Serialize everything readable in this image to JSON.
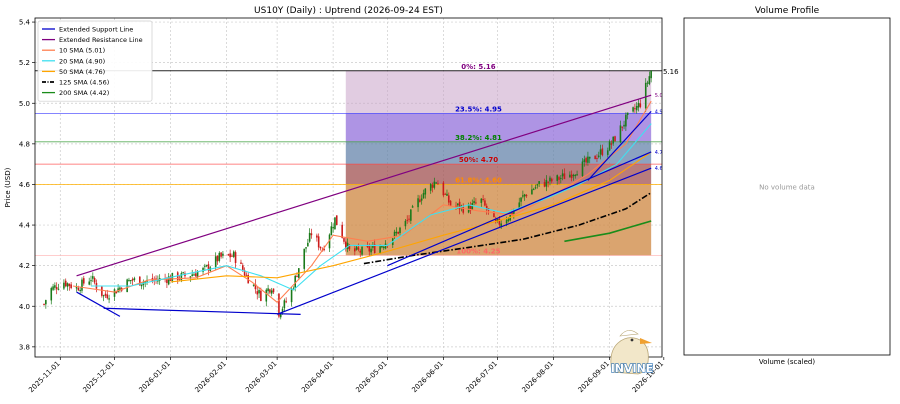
{
  "chart_data": [
    {
      "type": "candlestick",
      "title": "US10Y (Daily) : Uptrend (2026-09-24 EST)",
      "ylabel": "Price (USD)",
      "ylim": [
        3.75,
        5.42
      ],
      "yticks": [
        3.8,
        4.0,
        4.2,
        4.4,
        4.6,
        4.8,
        5.0,
        5.2,
        5.4
      ],
      "ytick_labels": [
        "3.8",
        "4.0",
        "4.2",
        "4.4",
        "4.6",
        "4.8",
        "5.0",
        "5.2",
        "5.4"
      ],
      "xrange": [
        "2025-10-18",
        "2026-09-30"
      ],
      "xticks": [
        "2025-11-01",
        "2025-12-01",
        "2026-01-01",
        "2026-02-01",
        "2026-03-01",
        "2026-04-01",
        "2026-05-01",
        "2026-06-01",
        "2026-07-01",
        "2026-08-01",
        "2026-09-01",
        "2026-10-01"
      ],
      "xtick_labels": [
        "2025-11-01",
        "2025-12-01",
        "2026-01-01",
        "2026-02-01",
        "2026-03-01",
        "2026-04-01",
        "2026-05-01",
        "2026-06-01",
        "2026-07-01",
        "2026-08-01",
        "2026-09-01",
        "2026-10-01"
      ],
      "grid": true,
      "legend_position": "top-left",
      "legend": [
        {
          "label": "Extended Support Line",
          "color": "#0000cc",
          "style": "solid"
        },
        {
          "label": "Extended Resistance Line",
          "color": "#800080",
          "style": "solid"
        },
        {
          "label": "10 SMA (5.01)",
          "color": "#ff7f50",
          "style": "solid"
        },
        {
          "label": "20 SMA (4.90)",
          "color": "#40e0f0",
          "style": "solid"
        },
        {
          "label": "50 SMA (4.76)",
          "color": "#ffa500",
          "style": "solid"
        },
        {
          "label": "125 SMA (4.56)",
          "color": "#000000",
          "style": "dashdot"
        },
        {
          "label": "200 SMA (4.42)",
          "color": "#1a8c1a",
          "style": "solid"
        }
      ],
      "current_price": {
        "value": 5.16,
        "label": "5.16"
      },
      "fibonacci": {
        "start_date": "2026-04-08",
        "end_date": "2026-09-24",
        "levels": [
          {
            "label": "0%: 5.16",
            "value": 5.16,
            "fill": "#c8a2c8",
            "color": "#800080"
          },
          {
            "label": "23.5%: 4.95",
            "value": 4.95,
            "fill": "#9370db",
            "color": "#0000cc"
          },
          {
            "label": "38.2%: 4.81",
            "value": 4.81,
            "fill": "#5f7fa8",
            "color": "#008000"
          },
          {
            "label": "50%: 4.70",
            "value": 4.7,
            "fill": "#a05050",
            "color": "#cc0000"
          },
          {
            "label": "61.8%: 4.60",
            "value": 4.6,
            "fill": "#cd853f",
            "color": "#ff8c00"
          },
          {
            "label": "100%: 4.25",
            "value": 4.25,
            "fill": "#cd853f",
            "color": "#ff6666"
          }
        ]
      },
      "horizontal_lines": [
        {
          "value": 5.16,
          "color": "#000000"
        },
        {
          "value": 4.95,
          "color": "#4040ff"
        },
        {
          "value": 4.81,
          "color": "#40a040"
        },
        {
          "value": 4.7,
          "color": "#ff4040"
        },
        {
          "value": 4.6,
          "color": "#ffb000"
        },
        {
          "value": 4.25,
          "color": "#ffb0b0"
        }
      ],
      "right_value_labels": [
        {
          "text": "5.04",
          "value": 5.04,
          "color": "#800080"
        },
        {
          "text": "4.96",
          "value": 4.96,
          "color": "#0000cc"
        },
        {
          "text": "4.76",
          "value": 4.76,
          "color": "#0000cc"
        },
        {
          "text": "4.68",
          "value": 4.68,
          "color": "#0000cc"
        }
      ],
      "trend_lines": [
        {
          "name": "support-lower-left",
          "color": "#0000cc",
          "points": [
            [
              "2025-11-10",
              4.07
            ],
            [
              "2025-12-04",
              3.95
            ]
          ]
        },
        {
          "name": "support-bottom",
          "color": "#0000cc",
          "points": [
            [
              "2025-11-25",
              3.99
            ],
            [
              "2026-03-14",
              3.96
            ]
          ]
        },
        {
          "name": "support-main",
          "color": "#0000cc",
          "points": [
            [
              "2026-03-01",
              3.96
            ],
            [
              "2026-09-24",
              4.68
            ]
          ]
        },
        {
          "name": "support-upper",
          "color": "#0000cc",
          "points": [
            [
              "2026-05-01",
              4.2
            ],
            [
              "2026-09-24",
              4.76
            ]
          ]
        },
        {
          "name": "support-steep",
          "color": "#0000cc",
          "points": [
            [
              "2026-08-20",
              4.62
            ],
            [
              "2026-09-24",
              4.96
            ]
          ]
        },
        {
          "name": "resistance",
          "color": "#800080",
          "points": [
            [
              "2025-11-10",
              4.15
            ],
            [
              "2026-09-24",
              5.04
            ]
          ]
        }
      ],
      "sma": [
        {
          "name": "10 SMA",
          "color": "#ff7f50",
          "points": [
            [
              "2025-11-08",
              4.1
            ],
            [
              "2025-12-01",
              4.07
            ],
            [
              "2025-12-20",
              4.13
            ],
            [
              "2026-01-15",
              4.14
            ],
            [
              "2026-02-01",
              4.2
            ],
            [
              "2026-02-15",
              4.12
            ],
            [
              "2026-03-01",
              4.02
            ],
            [
              "2026-03-20",
              4.2
            ],
            [
              "2026-04-01",
              4.35
            ],
            [
              "2026-04-20",
              4.32
            ],
            [
              "2026-05-10",
              4.35
            ],
            [
              "2026-06-01",
              4.5
            ],
            [
              "2026-06-20",
              4.47
            ],
            [
              "2026-07-10",
              4.45
            ],
            [
              "2026-08-01",
              4.55
            ],
            [
              "2026-08-20",
              4.65
            ],
            [
              "2026-09-10",
              4.8
            ],
            [
              "2026-09-24",
              5.01
            ]
          ]
        },
        {
          "name": "20 SMA",
          "color": "#40e0f0",
          "points": [
            [
              "2025-11-18",
              4.1
            ],
            [
              "2025-12-10",
              4.1
            ],
            [
              "2026-01-05",
              4.15
            ],
            [
              "2026-02-01",
              4.2
            ],
            [
              "2026-02-20",
              4.15
            ],
            [
              "2026-03-10",
              4.08
            ],
            [
              "2026-03-25",
              4.2
            ],
            [
              "2026-04-10",
              4.3
            ],
            [
              "2026-05-01",
              4.3
            ],
            [
              "2026-05-25",
              4.45
            ],
            [
              "2026-06-15",
              4.5
            ],
            [
              "2026-07-05",
              4.46
            ],
            [
              "2026-07-25",
              4.52
            ],
            [
              "2026-08-15",
              4.6
            ],
            [
              "2026-09-05",
              4.7
            ],
            [
              "2026-09-24",
              4.9
            ]
          ]
        },
        {
          "name": "50 SMA",
          "color": "#ffa500",
          "points": [
            [
              "2026-01-01",
              4.12
            ],
            [
              "2026-02-01",
              4.15
            ],
            [
              "2026-03-01",
              4.14
            ],
            [
              "2026-04-01",
              4.2
            ],
            [
              "2026-05-01",
              4.27
            ],
            [
              "2026-06-01",
              4.35
            ],
            [
              "2026-07-01",
              4.42
            ],
            [
              "2026-08-01",
              4.5
            ],
            [
              "2026-09-01",
              4.62
            ],
            [
              "2026-09-24",
              4.76
            ]
          ]
        },
        {
          "name": "125 SMA",
          "color": "#000000",
          "points": [
            [
              "2026-04-18",
              4.21
            ],
            [
              "2026-05-15",
              4.25
            ],
            [
              "2026-06-15",
              4.29
            ],
            [
              "2026-07-15",
              4.33
            ],
            [
              "2026-08-15",
              4.4
            ],
            [
              "2026-09-10",
              4.48
            ],
            [
              "2026-09-24",
              4.56
            ]
          ]
        },
        {
          "name": "200 SMA",
          "color": "#1a8c1a",
          "points": [
            [
              "2026-08-07",
              4.32
            ],
            [
              "2026-09-01",
              4.36
            ],
            [
              "2026-09-24",
              4.42
            ]
          ]
        }
      ],
      "close_path": [
        [
          "2025-10-23",
          4.01
        ],
        [
          "2025-10-26",
          4.08
        ],
        [
          "2025-11-03",
          4.12
        ],
        [
          "2025-11-10",
          4.09
        ],
        [
          "2025-11-18",
          4.14
        ],
        [
          "2025-11-25",
          4.05
        ],
        [
          "2025-12-02",
          4.08
        ],
        [
          "2025-12-10",
          4.13
        ],
        [
          "2025-12-18",
          4.12
        ],
        [
          "2026-01-01",
          4.14
        ],
        [
          "2026-01-10",
          4.15
        ],
        [
          "2026-01-20",
          4.18
        ],
        [
          "2026-01-28",
          4.24
        ],
        [
          "2026-02-05",
          4.25
        ],
        [
          "2026-02-12",
          4.15
        ],
        [
          "2026-02-20",
          4.05
        ],
        [
          "2026-02-26",
          4.1
        ],
        [
          "2026-03-02",
          3.97
        ],
        [
          "2026-03-08",
          4.05
        ],
        [
          "2026-03-15",
          4.25
        ],
        [
          "2026-03-20",
          4.36
        ],
        [
          "2026-03-26",
          4.28
        ],
        [
          "2026-04-02",
          4.43
        ],
        [
          "2026-04-10",
          4.27
        ],
        [
          "2026-04-18",
          4.27
        ],
        [
          "2026-04-26",
          4.29
        ],
        [
          "2026-05-05",
          4.35
        ],
        [
          "2026-05-12",
          4.42
        ],
        [
          "2026-05-20",
          4.55
        ],
        [
          "2026-05-28",
          4.62
        ],
        [
          "2026-06-05",
          4.5
        ],
        [
          "2026-06-14",
          4.48
        ],
        [
          "2026-06-22",
          4.52
        ],
        [
          "2026-06-30",
          4.4
        ],
        [
          "2026-07-08",
          4.45
        ],
        [
          "2026-07-16",
          4.55
        ],
        [
          "2026-07-24",
          4.6
        ],
        [
          "2026-08-01",
          4.62
        ],
        [
          "2026-08-10",
          4.65
        ],
        [
          "2026-08-18",
          4.7
        ],
        [
          "2026-08-26",
          4.75
        ],
        [
          "2026-09-02",
          4.8
        ],
        [
          "2026-09-10",
          4.92
        ],
        [
          "2026-09-18",
          5.0
        ],
        [
          "2026-09-24",
          5.16
        ]
      ]
    },
    {
      "type": "volume_profile",
      "title": "Volume Profile",
      "xlabel": "Volume (scaled)",
      "message": "No volume data"
    }
  ],
  "watermark": {
    "text": "INVINE"
  }
}
